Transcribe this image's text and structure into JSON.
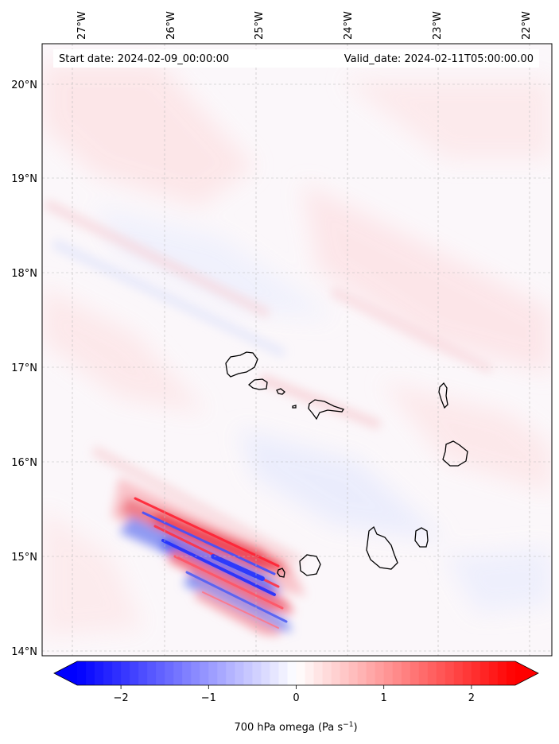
{
  "map": {
    "start_date_label": "Start date: 2024-02-09_00:00:00",
    "valid_date_label": "Valid_date: 2024-02-11T05:00:00.00",
    "lon_labels": [
      "27°W",
      "26°W",
      "25°W",
      "24°W",
      "23°W",
      "22°W"
    ],
    "lat_labels": [
      "20°N",
      "19°N",
      "18°N",
      "17°N",
      "16°N",
      "15°N",
      "14°N"
    ],
    "lon_range": [
      -27.35,
      -21.75
    ],
    "lat_range": [
      13.95,
      20.4
    ],
    "colormap": "bwr",
    "gridlines": "dashed light grey"
  },
  "colorbar": {
    "ticks": [
      "−2",
      "−1",
      "0",
      "1",
      "2"
    ],
    "tick_values": [
      -2,
      -1,
      0,
      1,
      2
    ],
    "range": [
      -2.5,
      2.5
    ],
    "extend": "both",
    "label_main": "700 hPa omega (Pa s",
    "label_exp": "−1",
    "label_close": ")",
    "low_color": "#0000ff",
    "high_color": "#ff0000"
  }
}
